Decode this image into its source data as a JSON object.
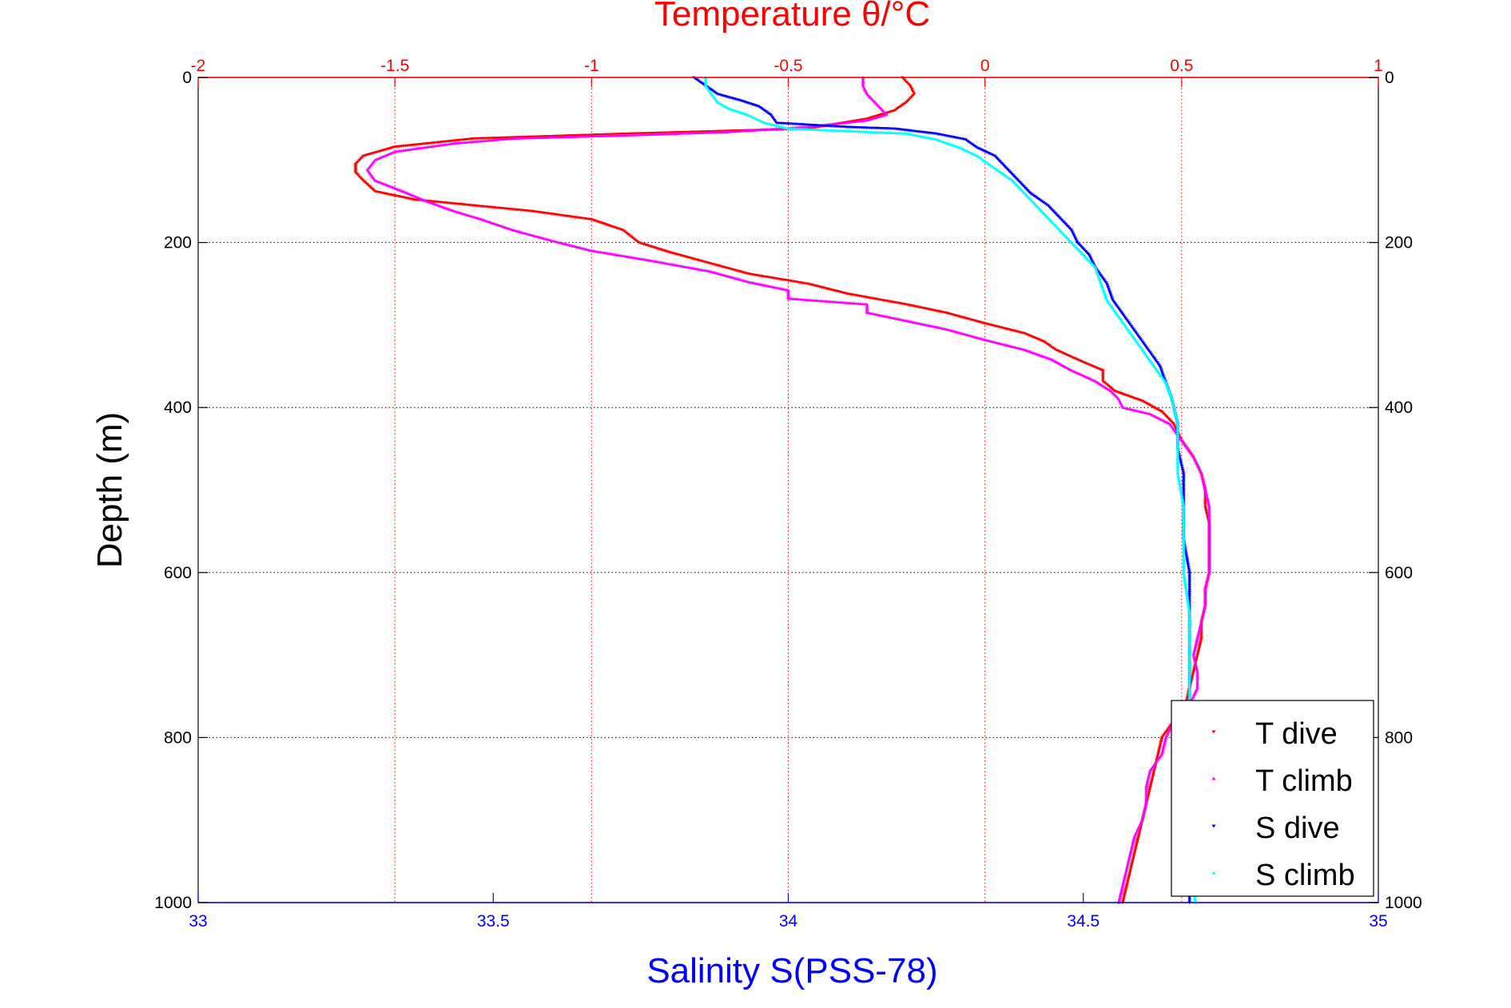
{
  "chart_data": {
    "type": "scatter",
    "title": "Temperature θ/°C",
    "xlabel": "Salinity S(PSS-78)",
    "ylabel": "Depth (m)",
    "x_temperature": {
      "label": "Temperature θ/°C",
      "lim": [
        -2,
        1
      ],
      "ticks": [
        -2,
        -1.5,
        -1,
        -0.5,
        0,
        0.5,
        1
      ],
      "tick_labels": [
        "-2",
        "-1.5",
        "-1",
        "-0.5",
        "0",
        "0.5",
        "1"
      ],
      "color": "#ff0000"
    },
    "x_salinity": {
      "label": "Salinity S(PSS-78)",
      "lim": [
        33,
        35
      ],
      "ticks": [
        33,
        33.5,
        34,
        34.5,
        35
      ],
      "tick_labels": [
        "33",
        "33.5",
        "34",
        "34.5",
        "35"
      ],
      "color": "#0000ff"
    },
    "y_depth": {
      "lim": [
        0,
        1000
      ],
      "reversed": true,
      "ticks": [
        0,
        200,
        400,
        600,
        800,
        1000
      ],
      "tick_labels": [
        "0",
        "200",
        "400",
        "600",
        "800",
        "1000"
      ]
    },
    "grid": true,
    "legend_position": "bottom-right",
    "series": [
      {
        "name": "T dive",
        "axis": "temperature",
        "color": "#ff0000",
        "marker": "triangle-down",
        "points": [
          [
            -0.21,
            0
          ],
          [
            -0.19,
            10
          ],
          [
            -0.18,
            20
          ],
          [
            -0.2,
            30
          ],
          [
            -0.23,
            40
          ],
          [
            -0.3,
            50
          ],
          [
            -0.45,
            62
          ],
          [
            -0.9,
            68
          ],
          [
            -1.3,
            74
          ],
          [
            -1.5,
            84
          ],
          [
            -1.58,
            95
          ],
          [
            -1.6,
            105
          ],
          [
            -1.6,
            115
          ],
          [
            -1.58,
            125
          ],
          [
            -1.55,
            138
          ],
          [
            -1.45,
            148
          ],
          [
            -1.3,
            155
          ],
          [
            -1.15,
            162
          ],
          [
            -1.0,
            172
          ],
          [
            -0.92,
            185
          ],
          [
            -0.88,
            200
          ],
          [
            -0.8,
            212
          ],
          [
            -0.7,
            225
          ],
          [
            -0.6,
            238
          ],
          [
            -0.45,
            250
          ],
          [
            -0.35,
            262
          ],
          [
            -0.2,
            275
          ],
          [
            -0.1,
            285
          ],
          [
            0.0,
            298
          ],
          [
            0.1,
            310
          ],
          [
            0.15,
            320
          ],
          [
            0.18,
            330
          ],
          [
            0.25,
            345
          ],
          [
            0.3,
            355
          ],
          [
            0.3,
            368
          ],
          [
            0.33,
            380
          ],
          [
            0.4,
            392
          ],
          [
            0.45,
            405
          ],
          [
            0.48,
            420
          ],
          [
            0.5,
            440
          ],
          [
            0.53,
            460
          ],
          [
            0.55,
            480
          ],
          [
            0.56,
            500
          ],
          [
            0.56,
            520
          ],
          [
            0.57,
            540
          ],
          [
            0.57,
            560
          ],
          [
            0.57,
            580
          ],
          [
            0.57,
            600
          ],
          [
            0.56,
            620
          ],
          [
            0.56,
            640
          ],
          [
            0.55,
            660
          ],
          [
            0.55,
            680
          ],
          [
            0.54,
            700
          ],
          [
            0.53,
            720
          ],
          [
            0.52,
            740
          ],
          [
            0.51,
            760
          ],
          [
            0.48,
            780
          ],
          [
            0.45,
            800
          ],
          [
            0.44,
            820
          ],
          [
            0.43,
            840
          ],
          [
            0.42,
            860
          ],
          [
            0.41,
            880
          ],
          [
            0.4,
            900
          ],
          [
            0.39,
            920
          ],
          [
            0.38,
            940
          ],
          [
            0.37,
            960
          ],
          [
            0.36,
            980
          ],
          [
            0.35,
            1000
          ]
        ]
      },
      {
        "name": "T climb",
        "axis": "temperature",
        "color": "#ff00ff",
        "marker": "triangle-up",
        "points": [
          [
            -0.31,
            0
          ],
          [
            -0.31,
            10
          ],
          [
            -0.3,
            20
          ],
          [
            -0.28,
            30
          ],
          [
            -0.25,
            45
          ],
          [
            -0.3,
            52
          ],
          [
            -0.45,
            60
          ],
          [
            -0.65,
            66
          ],
          [
            -0.9,
            70
          ],
          [
            -1.2,
            74
          ],
          [
            -1.35,
            80
          ],
          [
            -1.5,
            90
          ],
          [
            -1.55,
            100
          ],
          [
            -1.57,
            112
          ],
          [
            -1.55,
            125
          ],
          [
            -1.48,
            138
          ],
          [
            -1.42,
            150
          ],
          [
            -1.35,
            162
          ],
          [
            -1.28,
            172
          ],
          [
            -1.2,
            185
          ],
          [
            -1.1,
            198
          ],
          [
            -1.0,
            210
          ],
          [
            -0.85,
            222
          ],
          [
            -0.7,
            235
          ],
          [
            -0.6,
            248
          ],
          [
            -0.5,
            258
          ],
          [
            -0.5,
            268
          ],
          [
            -0.3,
            275
          ],
          [
            -0.3,
            285
          ],
          [
            -0.2,
            295
          ],
          [
            -0.1,
            305
          ],
          [
            0.0,
            318
          ],
          [
            0.1,
            330
          ],
          [
            0.17,
            342
          ],
          [
            0.22,
            355
          ],
          [
            0.28,
            368
          ],
          [
            0.32,
            380
          ],
          [
            0.34,
            390
          ],
          [
            0.35,
            400
          ],
          [
            0.42,
            408
          ],
          [
            0.47,
            420
          ],
          [
            0.5,
            440
          ],
          [
            0.53,
            460
          ],
          [
            0.55,
            480
          ],
          [
            0.56,
            500
          ],
          [
            0.57,
            520
          ],
          [
            0.57,
            540
          ],
          [
            0.57,
            560
          ],
          [
            0.57,
            580
          ],
          [
            0.57,
            600
          ],
          [
            0.56,
            620
          ],
          [
            0.56,
            640
          ],
          [
            0.55,
            660
          ],
          [
            0.54,
            680
          ],
          [
            0.53,
            700
          ],
          [
            0.54,
            720
          ],
          [
            0.54,
            740
          ],
          [
            0.52,
            760
          ],
          [
            0.48,
            780
          ],
          [
            0.46,
            800
          ],
          [
            0.45,
            820
          ],
          [
            0.42,
            840
          ],
          [
            0.41,
            860
          ],
          [
            0.41,
            880
          ],
          [
            0.4,
            900
          ],
          [
            0.38,
            920
          ],
          [
            0.37,
            940
          ],
          [
            0.36,
            960
          ],
          [
            0.35,
            980
          ],
          [
            0.34,
            1000
          ]
        ]
      },
      {
        "name": "S dive",
        "axis": "salinity",
        "color": "#0000ff",
        "marker": "triangle-down",
        "points": [
          [
            33.84,
            0
          ],
          [
            33.86,
            10
          ],
          [
            33.88,
            20
          ],
          [
            33.92,
            28
          ],
          [
            33.95,
            35
          ],
          [
            33.97,
            45
          ],
          [
            33.98,
            55
          ],
          [
            34.1,
            60
          ],
          [
            34.18,
            62
          ],
          [
            34.25,
            68
          ],
          [
            34.3,
            75
          ],
          [
            34.32,
            85
          ],
          [
            34.35,
            95
          ],
          [
            34.37,
            110
          ],
          [
            34.39,
            125
          ],
          [
            34.41,
            140
          ],
          [
            34.44,
            155
          ],
          [
            34.46,
            170
          ],
          [
            34.48,
            185
          ],
          [
            34.49,
            200
          ],
          [
            34.51,
            215
          ],
          [
            34.52,
            230
          ],
          [
            34.54,
            250
          ],
          [
            34.55,
            270
          ],
          [
            34.57,
            290
          ],
          [
            34.59,
            310
          ],
          [
            34.61,
            330
          ],
          [
            34.63,
            350
          ],
          [
            34.64,
            370
          ],
          [
            34.65,
            390
          ],
          [
            34.66,
            420
          ],
          [
            34.66,
            450
          ],
          [
            34.67,
            480
          ],
          [
            34.67,
            520
          ],
          [
            34.67,
            560
          ],
          [
            34.68,
            600
          ],
          [
            34.68,
            650
          ],
          [
            34.68,
            700
          ],
          [
            34.68,
            750
          ],
          [
            34.68,
            800
          ],
          [
            34.68,
            850
          ],
          [
            34.68,
            900
          ],
          [
            34.68,
            950
          ],
          [
            34.68,
            1000
          ]
        ]
      },
      {
        "name": "S climb",
        "axis": "salinity",
        "color": "#00ffff",
        "marker": "triangle-up",
        "points": [
          [
            33.86,
            0
          ],
          [
            33.86,
            10
          ],
          [
            33.87,
            20
          ],
          [
            33.88,
            30
          ],
          [
            33.9,
            38
          ],
          [
            33.93,
            45
          ],
          [
            33.96,
            55
          ],
          [
            34.0,
            62
          ],
          [
            34.1,
            65
          ],
          [
            34.2,
            68
          ],
          [
            34.25,
            75
          ],
          [
            34.29,
            85
          ],
          [
            34.32,
            95
          ],
          [
            34.35,
            110
          ],
          [
            34.38,
            125
          ],
          [
            34.4,
            140
          ],
          [
            34.42,
            155
          ],
          [
            34.44,
            170
          ],
          [
            34.46,
            185
          ],
          [
            34.48,
            200
          ],
          [
            34.5,
            215
          ],
          [
            34.52,
            230
          ],
          [
            34.53,
            250
          ],
          [
            34.54,
            270
          ],
          [
            34.56,
            290
          ],
          [
            34.58,
            310
          ],
          [
            34.6,
            330
          ],
          [
            34.62,
            350
          ],
          [
            34.64,
            370
          ],
          [
            34.65,
            390
          ],
          [
            34.66,
            420
          ],
          [
            34.66,
            450
          ],
          [
            34.66,
            480
          ],
          [
            34.67,
            520
          ],
          [
            34.67,
            560
          ],
          [
            34.67,
            600
          ],
          [
            34.68,
            650
          ],
          [
            34.68,
            700
          ],
          [
            34.68,
            750
          ],
          [
            34.68,
            800
          ],
          [
            34.68,
            850
          ],
          [
            34.68,
            900
          ],
          [
            34.68,
            950
          ],
          [
            34.69,
            1000
          ]
        ]
      }
    ]
  }
}
